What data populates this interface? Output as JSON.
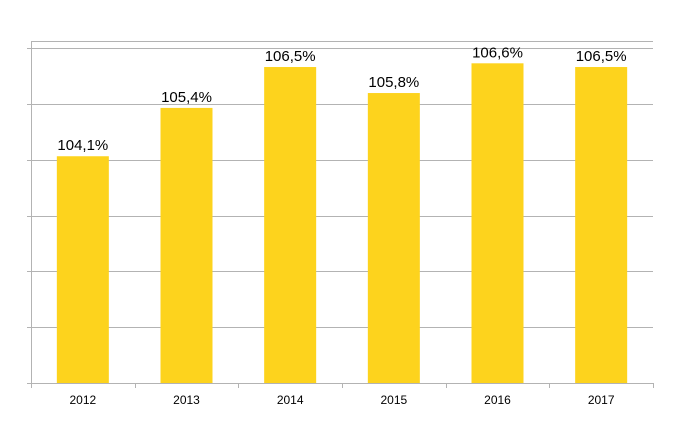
{
  "chart_data": {
    "type": "bar",
    "categories": [
      "2012",
      "2013",
      "2014",
      "2015",
      "2016",
      "2017"
    ],
    "values": [
      104.1,
      105.4,
      106.5,
      105.8,
      106.6,
      106.5
    ],
    "data_labels": [
      "104,1%",
      "105,4%",
      "106,5%",
      "105,8%",
      "106,6%",
      "106,5%"
    ],
    "ylim": [
      98,
      107.2
    ],
    "y_tick_step": 1.5,
    "grid": true,
    "y_tick_labels_shown": false,
    "legend": "none",
    "colors": {
      "bar": "#fdd31d",
      "grid": "#b3b3b3",
      "axis": "#b3b3b3"
    }
  }
}
